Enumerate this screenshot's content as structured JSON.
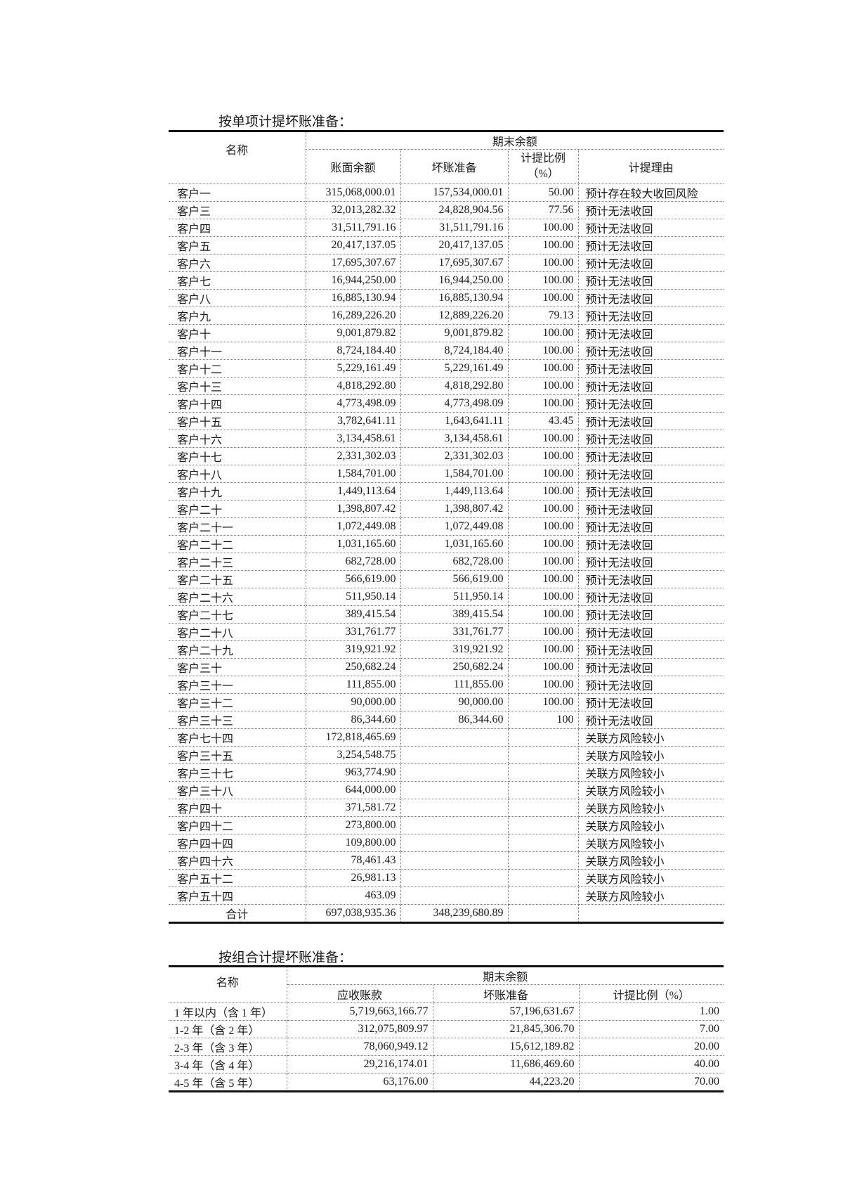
{
  "section1": {
    "title": "按单项计提坏账准备：",
    "headers": {
      "name": "名称",
      "group": "期末余额",
      "book_balance": "账面余额",
      "bad_debt": "坏账准备",
      "ratio": "计提比例",
      "ratio_unit": "（%）",
      "reason": "计提理由"
    },
    "rows": [
      [
        "客户一",
        "315,068,000.01",
        "157,534,000.01",
        "50.00",
        "预计存在较大收回风险"
      ],
      [
        "客户三",
        "32,013,282.32",
        "24,828,904.56",
        "77.56",
        "预计无法收回"
      ],
      [
        "客户四",
        "31,511,791.16",
        "31,511,791.16",
        "100.00",
        "预计无法收回"
      ],
      [
        "客户五",
        "20,417,137.05",
        "20,417,137.05",
        "100.00",
        "预计无法收回"
      ],
      [
        "客户六",
        "17,695,307.67",
        "17,695,307.67",
        "100.00",
        "预计无法收回"
      ],
      [
        "客户七",
        "16,944,250.00",
        "16,944,250.00",
        "100.00",
        "预计无法收回"
      ],
      [
        "客户八",
        "16,885,130.94",
        "16,885,130.94",
        "100.00",
        "预计无法收回"
      ],
      [
        "客户九",
        "16,289,226.20",
        "12,889,226.20",
        "79.13",
        "预计无法收回"
      ],
      [
        "客户十",
        "9,001,879.82",
        "9,001,879.82",
        "100.00",
        "预计无法收回"
      ],
      [
        "客户十一",
        "8,724,184.40",
        "8,724,184.40",
        "100.00",
        "预计无法收回"
      ],
      [
        "客户十二",
        "5,229,161.49",
        "5,229,161.49",
        "100.00",
        "预计无法收回"
      ],
      [
        "客户十三",
        "4,818,292.80",
        "4,818,292.80",
        "100.00",
        "预计无法收回"
      ],
      [
        "客户十四",
        "4,773,498.09",
        "4,773,498.09",
        "100.00",
        "预计无法收回"
      ],
      [
        "客户十五",
        "3,782,641.11",
        "1,643,641.11",
        "43.45",
        "预计无法收回"
      ],
      [
        "客户十六",
        "3,134,458.61",
        "3,134,458.61",
        "100.00",
        "预计无法收回"
      ],
      [
        "客户十七",
        "2,331,302.03",
        "2,331,302.03",
        "100.00",
        "预计无法收回"
      ],
      [
        "客户十八",
        "1,584,701.00",
        "1,584,701.00",
        "100.00",
        "预计无法收回"
      ],
      [
        "客户十九",
        "1,449,113.64",
        "1,449,113.64",
        "100.00",
        "预计无法收回"
      ],
      [
        "客户二十",
        "1,398,807.42",
        "1,398,807.42",
        "100.00",
        "预计无法收回"
      ],
      [
        "客户二十一",
        "1,072,449.08",
        "1,072,449.08",
        "100.00",
        "预计无法收回"
      ],
      [
        "客户二十二",
        "1,031,165.60",
        "1,031,165.60",
        "100.00",
        "预计无法收回"
      ],
      [
        "客户二十三",
        "682,728.00",
        "682,728.00",
        "100.00",
        "预计无法收回"
      ],
      [
        "客户二十五",
        "566,619.00",
        "566,619.00",
        "100.00",
        "预计无法收回"
      ],
      [
        "客户二十六",
        "511,950.14",
        "511,950.14",
        "100.00",
        "预计无法收回"
      ],
      [
        "客户二十七",
        "389,415.54",
        "389,415.54",
        "100.00",
        "预计无法收回"
      ],
      [
        "客户二十八",
        "331,761.77",
        "331,761.77",
        "100.00",
        "预计无法收回"
      ],
      [
        "客户二十九",
        "319,921.92",
        "319,921.92",
        "100.00",
        "预计无法收回"
      ],
      [
        "客户三十",
        "250,682.24",
        "250,682.24",
        "100.00",
        "预计无法收回"
      ],
      [
        "客户三十一",
        "111,855.00",
        "111,855.00",
        "100.00",
        "预计无法收回"
      ],
      [
        "客户三十二",
        "90,000.00",
        "90,000.00",
        "100.00",
        "预计无法收回"
      ],
      [
        "客户三十三",
        "86,344.60",
        "86,344.60",
        "100",
        "预计无法收回"
      ],
      [
        "客户七十四",
        "172,818,465.69",
        "",
        "",
        "关联方风险较小"
      ],
      [
        "客户三十五",
        "3,254,548.75",
        "",
        "",
        "关联方风险较小"
      ],
      [
        "客户三十七",
        "963,774.90",
        "",
        "",
        "关联方风险较小"
      ],
      [
        "客户三十八",
        "644,000.00",
        "",
        "",
        "关联方风险较小"
      ],
      [
        "客户四十",
        "371,581.72",
        "",
        "",
        "关联方风险较小"
      ],
      [
        "客户四十二",
        "273,800.00",
        "",
        "",
        "关联方风险较小"
      ],
      [
        "客户四十四",
        "109,800.00",
        "",
        "",
        "关联方风险较小"
      ],
      [
        "客户四十六",
        "78,461.43",
        "",
        "",
        "关联方风险较小"
      ],
      [
        "客户五十二",
        "26,981.13",
        "",
        "",
        "关联方风险较小"
      ],
      [
        "客户五十四",
        "463.09",
        "",
        "",
        "关联方风险较小"
      ]
    ],
    "total": [
      "合计",
      "697,038,935.36",
      "348,239,680.89",
      "",
      ""
    ]
  },
  "section2": {
    "title": "按组合计提坏账准备：",
    "headers": {
      "name": "名称",
      "group": "期末余额",
      "receivable": "应收账款",
      "bad_debt": "坏账准备",
      "ratio": "计提比例（%）"
    },
    "rows": [
      [
        "1 年以内（含 1 年）",
        "5,719,663,166.77",
        "57,196,631.67",
        "1.00"
      ],
      [
        "1-2 年（含 2 年）",
        "312,075,809.97",
        "21,845,306.70",
        "7.00"
      ],
      [
        "2-3 年（含 3 年）",
        "78,060,949.12",
        "15,612,189.82",
        "20.00"
      ],
      [
        "3-4 年（含 4 年）",
        "29,216,174.01",
        "11,686,469.60",
        "40.00"
      ],
      [
        "4-5 年（含 5 年）",
        "63,176.00",
        "44,223.20",
        "70.00"
      ]
    ]
  }
}
